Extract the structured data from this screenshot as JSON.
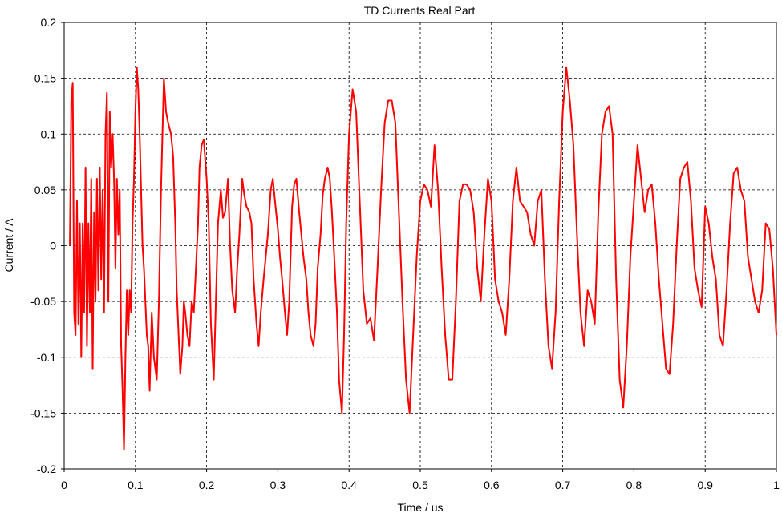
{
  "colors": {
    "series": "#ff0000",
    "grid": "#000000",
    "background": "#ffffff"
  },
  "chart_data": {
    "type": "line",
    "title": "TD Currents Real Part",
    "xlabel": "Time / us",
    "ylabel": "Current / A",
    "xlim": [
      0,
      1
    ],
    "ylim": [
      -0.2,
      0.2
    ],
    "grid": true,
    "legend": "none",
    "x_ticks": [
      {
        "value": 0,
        "label": "0"
      },
      {
        "value": 0.1,
        "label": "0.1"
      },
      {
        "value": 0.2,
        "label": "0.2"
      },
      {
        "value": 0.3,
        "label": "0.3"
      },
      {
        "value": 0.4,
        "label": "0.4"
      },
      {
        "value": 0.5,
        "label": "0.5"
      },
      {
        "value": 0.6,
        "label": "0.6"
      },
      {
        "value": 0.7,
        "label": "0.7"
      },
      {
        "value": 0.8,
        "label": "0.8"
      },
      {
        "value": 0.9,
        "label": "0.9"
      },
      {
        "value": 1,
        "label": "1"
      }
    ],
    "y_ticks": [
      {
        "value": 0.2,
        "label": "0.2"
      },
      {
        "value": 0.15,
        "label": "0.15"
      },
      {
        "value": 0.1,
        "label": "0.1"
      },
      {
        "value": 0.05,
        "label": "0.05"
      },
      {
        "value": 0,
        "label": "0"
      },
      {
        "value": -0.05,
        "label": "-0.05"
      },
      {
        "value": -0.1,
        "label": "-0.1"
      },
      {
        "value": -0.15,
        "label": "-0.15"
      },
      {
        "value": -0.2,
        "label": "-0.2"
      }
    ],
    "series": [
      {
        "x": [
          0.008,
          0.01,
          0.012,
          0.014,
          0.016,
          0.018,
          0.02,
          0.022,
          0.024,
          0.026,
          0.028,
          0.03,
          0.032,
          0.034,
          0.036,
          0.038,
          0.04,
          0.042,
          0.044,
          0.046,
          0.048,
          0.05,
          0.052,
          0.054,
          0.056,
          0.058,
          0.06,
          0.062,
          0.064,
          0.066,
          0.068,
          0.07,
          0.072,
          0.074,
          0.076,
          0.078,
          0.08,
          0.082,
          0.084,
          0.086,
          0.088,
          0.09,
          0.092,
          0.094,
          0.096,
          0.098,
          0.1,
          0.102,
          0.104,
          0.106,
          0.108,
          0.11,
          0.112,
          0.114,
          0.116,
          0.118,
          0.12,
          0.123,
          0.126,
          0.13,
          0.133,
          0.136,
          0.14,
          0.143,
          0.146,
          0.15,
          0.153,
          0.156,
          0.158,
          0.16,
          0.163,
          0.166,
          0.168,
          0.17,
          0.173,
          0.176,
          0.179,
          0.182,
          0.185,
          0.188,
          0.19,
          0.193,
          0.196,
          0.2,
          0.203,
          0.206,
          0.21,
          0.213,
          0.216,
          0.22,
          0.223,
          0.226,
          0.23,
          0.233,
          0.236,
          0.24,
          0.243,
          0.246,
          0.25,
          0.253,
          0.256,
          0.26,
          0.263,
          0.266,
          0.27,
          0.273,
          0.276,
          0.28,
          0.283,
          0.286,
          0.29,
          0.293,
          0.296,
          0.3,
          0.303,
          0.306,
          0.31,
          0.313,
          0.316,
          0.32,
          0.323,
          0.326,
          0.33,
          0.333,
          0.336,
          0.34,
          0.343,
          0.346,
          0.35,
          0.353,
          0.356,
          0.36,
          0.363,
          0.366,
          0.37,
          0.373,
          0.376,
          0.38,
          0.383,
          0.386,
          0.39,
          0.393,
          0.396,
          0.4,
          0.405,
          0.41,
          0.415,
          0.42,
          0.425,
          0.43,
          0.435,
          0.44,
          0.445,
          0.45,
          0.455,
          0.46,
          0.465,
          0.47,
          0.475,
          0.48,
          0.485,
          0.49,
          0.495,
          0.5,
          0.505,
          0.51,
          0.515,
          0.52,
          0.525,
          0.53,
          0.535,
          0.54,
          0.545,
          0.55,
          0.555,
          0.56,
          0.565,
          0.57,
          0.575,
          0.58,
          0.585,
          0.59,
          0.595,
          0.6,
          0.605,
          0.61,
          0.615,
          0.62,
          0.625,
          0.63,
          0.635,
          0.64,
          0.645,
          0.65,
          0.655,
          0.66,
          0.665,
          0.67,
          0.675,
          0.68,
          0.685,
          0.69,
          0.695,
          0.7,
          0.705,
          0.71,
          0.715,
          0.72,
          0.725,
          0.73,
          0.735,
          0.74,
          0.745,
          0.75,
          0.755,
          0.76,
          0.765,
          0.77,
          0.775,
          0.78,
          0.785,
          0.79,
          0.795,
          0.8,
          0.805,
          0.81,
          0.815,
          0.82,
          0.825,
          0.83,
          0.835,
          0.84,
          0.845,
          0.85,
          0.855,
          0.86,
          0.865,
          0.87,
          0.875,
          0.88,
          0.885,
          0.89,
          0.895,
          0.9,
          0.905,
          0.91,
          0.915,
          0.92,
          0.925,
          0.93,
          0.935,
          0.94,
          0.945,
          0.95,
          0.955,
          0.96,
          0.965,
          0.97,
          0.975,
          0.98,
          0.985,
          0.99,
          0.995,
          1.0
        ],
        "y": [
          0.0,
          0.13,
          0.146,
          -0.06,
          -0.08,
          0.04,
          -0.07,
          0.02,
          -0.1,
          0.02,
          -0.06,
          0.07,
          -0.09,
          0.02,
          -0.06,
          0.06,
          -0.11,
          0.03,
          -0.05,
          0.06,
          -0.04,
          0.07,
          -0.03,
          0.05,
          -0.06,
          0.1,
          0.137,
          -0.05,
          0.12,
          0.07,
          0.1,
          0.06,
          -0.02,
          0.06,
          0.01,
          0.05,
          -0.09,
          -0.13,
          -0.183,
          -0.1,
          -0.04,
          -0.08,
          -0.04,
          -0.06,
          0.02,
          0.06,
          0.12,
          0.16,
          0.14,
          0.1,
          0.05,
          0.0,
          -0.02,
          -0.05,
          -0.08,
          -0.09,
          -0.13,
          -0.06,
          -0.1,
          -0.12,
          -0.05,
          0.05,
          0.15,
          0.12,
          0.11,
          0.1,
          0.08,
          0.02,
          -0.04,
          -0.07,
          -0.115,
          -0.09,
          -0.05,
          -0.06,
          -0.08,
          -0.09,
          -0.05,
          -0.06,
          -0.02,
          0.02,
          0.07,
          0.09,
          0.095,
          0.06,
          0.02,
          -0.07,
          -0.12,
          -0.05,
          0.02,
          0.05,
          0.025,
          0.03,
          0.06,
          0.0,
          -0.04,
          -0.06,
          -0.02,
          0.01,
          0.06,
          0.045,
          0.035,
          0.03,
          0.02,
          -0.03,
          -0.07,
          -0.09,
          -0.06,
          -0.03,
          -0.01,
          0.01,
          0.05,
          0.06,
          0.04,
          0.015,
          -0.01,
          -0.03,
          -0.06,
          -0.08,
          -0.05,
          0.035,
          0.055,
          0.06,
          0.03,
          0.01,
          -0.01,
          -0.03,
          -0.06,
          -0.08,
          -0.09,
          -0.07,
          -0.02,
          0.01,
          0.045,
          0.06,
          0.07,
          0.06,
          0.03,
          -0.02,
          -0.06,
          -0.12,
          -0.15,
          -0.08,
          0.02,
          0.1,
          0.14,
          0.12,
          0.04,
          -0.04,
          -0.07,
          -0.065,
          -0.085,
          -0.02,
          0.05,
          0.11,
          0.13,
          0.13,
          0.11,
          0.03,
          -0.05,
          -0.12,
          -0.15,
          -0.08,
          -0.01,
          0.04,
          0.055,
          0.05,
          0.035,
          0.09,
          0.05,
          -0.02,
          -0.08,
          -0.12,
          -0.12,
          -0.05,
          0.04,
          0.055,
          0.055,
          0.05,
          0.03,
          -0.02,
          -0.05,
          0.01,
          0.06,
          0.04,
          -0.03,
          -0.05,
          -0.06,
          -0.08,
          -0.03,
          0.04,
          0.07,
          0.04,
          0.035,
          0.03,
          0.01,
          0.0,
          0.04,
          0.05,
          -0.03,
          -0.09,
          -0.11,
          -0.06,
          0.04,
          0.12,
          0.16,
          0.13,
          0.09,
          0.01,
          -0.06,
          -0.09,
          -0.04,
          -0.05,
          -0.07,
          0.03,
          0.1,
          0.12,
          0.125,
          0.1,
          -0.03,
          -0.12,
          -0.145,
          -0.09,
          -0.01,
          0.04,
          0.09,
          0.06,
          0.03,
          0.05,
          0.055,
          0.02,
          -0.03,
          -0.07,
          -0.11,
          -0.115,
          -0.07,
          0.0,
          0.06,
          0.07,
          0.075,
          0.04,
          -0.02,
          -0.04,
          -0.055,
          0.035,
          0.02,
          -0.01,
          -0.03,
          -0.08,
          -0.09,
          -0.04,
          0.02,
          0.065,
          0.07,
          0.05,
          0.04,
          -0.01,
          -0.03,
          -0.05,
          -0.06,
          -0.04,
          0.02,
          0.015,
          -0.02,
          -0.08
        ]
      }
    ]
  }
}
